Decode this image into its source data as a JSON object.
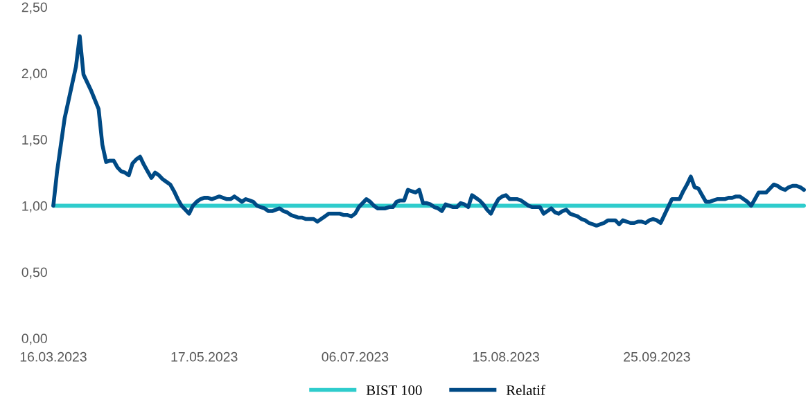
{
  "chart_data": {
    "type": "line",
    "categories": [
      "16.03.2023",
      null,
      null,
      null,
      null,
      null,
      null,
      null,
      null,
      null,
      null,
      null,
      null,
      null,
      null,
      null,
      null,
      null,
      null,
      null,
      null,
      null,
      null,
      null,
      null,
      null,
      null,
      null,
      null,
      null,
      null,
      null,
      null,
      null,
      null,
      null,
      null,
      null,
      null,
      null,
      "17.05.2023",
      null,
      null,
      null,
      null,
      null,
      null,
      null,
      null,
      null,
      null,
      null,
      null,
      null,
      null,
      null,
      null,
      null,
      null,
      null,
      null,
      null,
      null,
      null,
      null,
      null,
      null,
      null,
      null,
      null,
      null,
      null,
      null,
      null,
      null,
      null,
      null,
      null,
      null,
      null,
      "06.07.2023",
      null,
      null,
      null,
      null,
      null,
      null,
      null,
      null,
      null,
      null,
      null,
      null,
      null,
      null,
      null,
      null,
      null,
      null,
      null,
      null,
      null,
      null,
      null,
      null,
      null,
      null,
      null,
      null,
      null,
      null,
      null,
      null,
      null,
      null,
      null,
      null,
      null,
      null,
      null,
      "15.08.2023",
      null,
      null,
      null,
      null,
      null,
      null,
      null,
      null,
      null,
      null,
      null,
      null,
      null,
      null,
      null,
      null,
      null,
      null,
      null,
      null,
      null,
      null,
      null,
      null,
      null,
      null,
      null,
      null,
      null,
      null,
      null,
      null,
      null,
      null,
      null,
      null,
      null,
      null,
      null,
      "25.09.2023",
      null,
      null,
      null,
      null,
      null,
      null,
      null,
      null,
      null,
      null,
      null,
      null,
      null,
      null,
      null,
      null,
      null,
      null,
      null,
      null,
      null,
      null,
      null,
      null,
      null,
      null,
      null,
      null,
      null,
      null,
      null,
      null,
      null,
      null,
      null,
      null,
      null,
      null,
      null
    ],
    "ylim": [
      0,
      2.5
    ],
    "yticks": [
      {
        "value": 0,
        "label": "0,00"
      },
      {
        "value": 0.5,
        "label": "0,50"
      },
      {
        "value": 1.0,
        "label": "1,00"
      },
      {
        "value": 1.5,
        "label": "1,50"
      },
      {
        "value": 2.0,
        "label": "2,00"
      },
      {
        "value": 2.5,
        "label": "2,50"
      }
    ],
    "grid": false,
    "legend": "bottom",
    "marker": "none",
    "line_style": "solid",
    "series": [
      {
        "name": "BIST 100",
        "color": "#2ecccc",
        "values": [
          1,
          1,
          1,
          1,
          1,
          1,
          1,
          1,
          1,
          1,
          1,
          1,
          1,
          1,
          1,
          1,
          1,
          1,
          1,
          1,
          1,
          1,
          1,
          1,
          1,
          1,
          1,
          1,
          1,
          1,
          1,
          1,
          1,
          1,
          1,
          1,
          1,
          1,
          1,
          1,
          1,
          1,
          1,
          1,
          1,
          1,
          1,
          1,
          1,
          1,
          1,
          1,
          1,
          1,
          1,
          1,
          1,
          1,
          1,
          1,
          1,
          1,
          1,
          1,
          1,
          1,
          1,
          1,
          1,
          1,
          1,
          1,
          1,
          1,
          1,
          1,
          1,
          1,
          1,
          1,
          1,
          1,
          1,
          1,
          1,
          1,
          1,
          1,
          1,
          1,
          1,
          1,
          1,
          1,
          1,
          1,
          1,
          1,
          1,
          1,
          1,
          1,
          1,
          1,
          1,
          1,
          1,
          1,
          1,
          1,
          1,
          1,
          1,
          1,
          1,
          1,
          1,
          1,
          1,
          1,
          1,
          1,
          1,
          1,
          1,
          1,
          1,
          1,
          1,
          1,
          1,
          1,
          1,
          1,
          1,
          1,
          1,
          1,
          1,
          1,
          1,
          1,
          1,
          1,
          1,
          1,
          1,
          1,
          1,
          1,
          1,
          1,
          1,
          1,
          1,
          1,
          1,
          1,
          1,
          1,
          1,
          1,
          1,
          1,
          1,
          1,
          1,
          1,
          1,
          1,
          1,
          1,
          1,
          1,
          1,
          1,
          1,
          1,
          1,
          1,
          1,
          1,
          1,
          1,
          1,
          1,
          1,
          1,
          1,
          1,
          1,
          1,
          1,
          1,
          1,
          1,
          1,
          1,
          1,
          1
        ]
      },
      {
        "name": "Relatif",
        "color": "#004a85",
        "values": [
          1.0,
          1.26,
          1.46,
          1.66,
          1.79,
          1.92,
          2.05,
          2.28,
          1.99,
          1.93,
          1.87,
          1.8,
          1.73,
          1.46,
          1.33,
          1.34,
          1.34,
          1.29,
          1.26,
          1.25,
          1.23,
          1.32,
          1.35,
          1.37,
          1.31,
          1.26,
          1.21,
          1.25,
          1.23,
          1.2,
          1.18,
          1.16,
          1.11,
          1.05,
          1.0,
          0.97,
          0.94,
          1.0,
          1.03,
          1.05,
          1.06,
          1.06,
          1.05,
          1.06,
          1.07,
          1.06,
          1.05,
          1.05,
          1.07,
          1.05,
          1.03,
          1.05,
          1.04,
          1.03,
          1.0,
          0.99,
          0.98,
          0.96,
          0.96,
          0.97,
          0.98,
          0.96,
          0.95,
          0.93,
          0.92,
          0.91,
          0.91,
          0.9,
          0.9,
          0.9,
          0.88,
          0.9,
          0.92,
          0.94,
          0.94,
          0.94,
          0.94,
          0.93,
          0.93,
          0.92,
          0.94,
          0.99,
          1.02,
          1.05,
          1.03,
          1.0,
          0.98,
          0.98,
          0.98,
          0.99,
          0.99,
          1.03,
          1.04,
          1.04,
          1.12,
          1.11,
          1.1,
          1.12,
          1.02,
          1.02,
          1.01,
          0.99,
          0.98,
          0.96,
          1.01,
          1.0,
          0.99,
          0.99,
          1.02,
          1.01,
          0.99,
          1.08,
          1.06,
          1.04,
          1.01,
          0.97,
          0.94,
          1.0,
          1.05,
          1.07,
          1.08,
          1.05,
          1.05,
          1.05,
          1.04,
          1.02,
          1.0,
          0.99,
          0.99,
          0.99,
          0.94,
          0.96,
          0.98,
          0.95,
          0.94,
          0.96,
          0.97,
          0.94,
          0.93,
          0.92,
          0.9,
          0.89,
          0.87,
          0.86,
          0.85,
          0.86,
          0.87,
          0.89,
          0.89,
          0.89,
          0.86,
          0.89,
          0.88,
          0.87,
          0.87,
          0.88,
          0.88,
          0.87,
          0.89,
          0.9,
          0.89,
          0.87,
          0.93,
          0.99,
          1.05,
          1.05,
          1.05,
          1.11,
          1.16,
          1.22,
          1.14,
          1.13,
          1.08,
          1.03,
          1.03,
          1.04,
          1.05,
          1.05,
          1.05,
          1.06,
          1.06,
          1.07,
          1.07,
          1.05,
          1.03,
          1.0,
          1.05,
          1.1,
          1.1,
          1.1,
          1.13,
          1.16,
          1.15,
          1.13,
          1.12,
          1.14,
          1.15,
          1.15,
          1.14,
          1.12
        ]
      }
    ]
  }
}
